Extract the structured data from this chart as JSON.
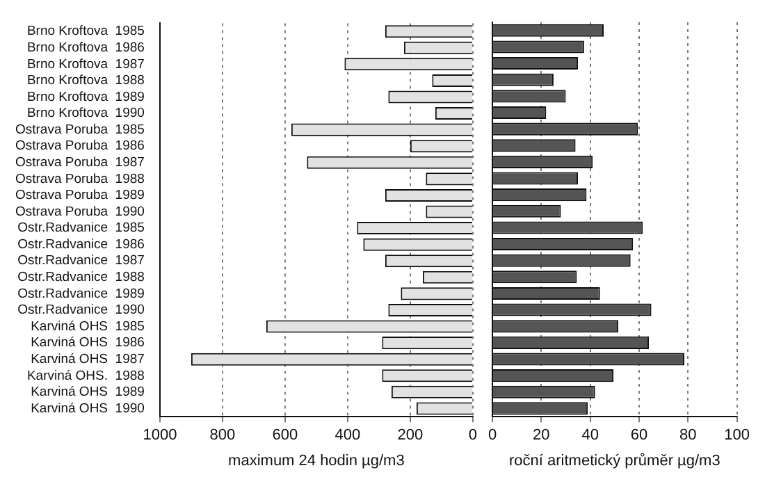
{
  "chart_data": [
    {
      "type": "bar",
      "orientation": "horizontal",
      "xlabel": "maximum 24 hodin µg/m3",
      "categories": [
        "Brno Kroftova  1985",
        "Brno Kroftova  1986",
        "Brno Kroftova  1987",
        "Brno Kroftova  1988",
        "Brno Kroftova  1989",
        "Brno Kroftova  1990",
        "Ostrava Poruba  1985",
        "Ostrava Poruba  1986",
        "Ostrava Poruba  1987",
        "Ostrava Poruba  1988",
        "Ostrava Poruba  1989",
        "Ostrava Poruba  1990",
        "Ostr.Radvanice  1985",
        "Ostr.Radvanice  1986",
        "Ostr.Radvanice  1987",
        "Ostr.Radvanice  1988",
        "Ostr.Radvanice  1989",
        "Ostr.Radvanice  1990",
        "Karviná OHS  1985",
        "Karviná OHS  1986",
        "Karviná OHS  1987",
        "Karviná OHS.  1988",
        "Karviná OHS  1989",
        "Karviná OHS  1990"
      ],
      "values": [
        280,
        220,
        410,
        130,
        270,
        120,
        580,
        200,
        530,
        150,
        280,
        150,
        370,
        350,
        280,
        160,
        230,
        270,
        660,
        290,
        900,
        290,
        260,
        180
      ],
      "color": "#e2e2e2",
      "xlim": [
        1000,
        0
      ],
      "xticks": [
        1000,
        800,
        600,
        400,
        200,
        0
      ],
      "grid": "x"
    },
    {
      "type": "bar",
      "orientation": "horizontal",
      "xlabel": "roční aritmetický průměr µg/m3",
      "categories": [
        null,
        null,
        null,
        null,
        null,
        null,
        null,
        null,
        null,
        null,
        null,
        null,
        null,
        null,
        null,
        null,
        null,
        null,
        null,
        null,
        null,
        null,
        null,
        null
      ],
      "values": [
        45.5,
        37.5,
        35,
        25,
        30,
        22,
        59.5,
        34,
        41,
        35,
        38.5,
        28,
        61.5,
        57.5,
        56.5,
        34.5,
        44,
        65,
        51.5,
        64,
        78.5,
        49.5,
        42,
        39
      ],
      "color": "#555555",
      "xlim": [
        0,
        100
      ],
      "xticks": [
        0,
        20,
        40,
        60,
        80,
        100
      ],
      "grid": "x",
      "tick_labels": "x"
    }
  ]
}
